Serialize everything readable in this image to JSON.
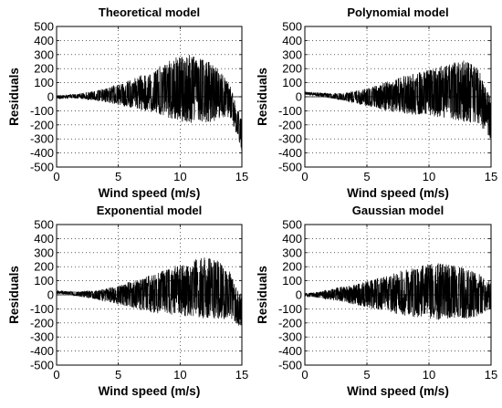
{
  "chart_data": [
    {
      "type": "area",
      "title": "Theoretical model",
      "xlabel": "Wind speed (m/s)",
      "ylabel": "Residuals",
      "xlim": [
        0,
        15
      ],
      "ylim": [
        -500,
        500
      ],
      "xticks": [
        "0",
        "5",
        "10",
        "15"
      ],
      "yticks": [
        "500",
        "400",
        "300",
        "200",
        "100",
        "0",
        "-100",
        "-200",
        "-300",
        "-400",
        "-500"
      ],
      "grid": true,
      "series": [
        {
          "x": [
            0,
            1,
            2,
            3,
            4,
            5,
            6,
            7,
            8,
            9,
            10,
            11,
            12,
            13,
            14,
            14.5,
            15
          ],
          "upper": [
            10,
            15,
            25,
            40,
            60,
            90,
            120,
            160,
            210,
            260,
            290,
            300,
            270,
            210,
            100,
            -50,
            -150
          ],
          "lower": [
            -15,
            -10,
            -15,
            -25,
            -40,
            -60,
            -80,
            -100,
            -120,
            -150,
            -175,
            -190,
            -190,
            -170,
            -150,
            -250,
            -390
          ]
        }
      ]
    },
    {
      "type": "area",
      "title": "Polynomial model",
      "xlabel": "Wind speed (m/s)",
      "ylabel": "Residuals",
      "xlim": [
        0,
        15
      ],
      "ylim": [
        -500,
        500
      ],
      "xticks": [
        "0",
        "5",
        "10",
        "15"
      ],
      "yticks": [
        "500",
        "400",
        "300",
        "200",
        "100",
        "0",
        "-100",
        "-200",
        "-300",
        "-400",
        "-500"
      ],
      "grid": true,
      "series": [
        {
          "x": [
            0,
            1,
            2,
            3,
            4,
            5,
            6,
            7,
            8,
            9,
            10,
            11,
            12,
            13,
            14,
            14.5,
            15
          ],
          "upper": [
            35,
            30,
            25,
            25,
            40,
            60,
            90,
            120,
            150,
            170,
            190,
            220,
            250,
            260,
            200,
            80,
            0
          ],
          "lower": [
            15,
            5,
            -10,
            -25,
            -45,
            -65,
            -90,
            -110,
            -120,
            -130,
            -140,
            -150,
            -170,
            -180,
            -190,
            -250,
            -300
          ]
        }
      ]
    },
    {
      "type": "area",
      "title": "Exponential model",
      "xlabel": "Wind speed (m/s)",
      "ylabel": "Residuals",
      "xlim": [
        0,
        15
      ],
      "ylim": [
        -500,
        500
      ],
      "xticks": [
        "0",
        "5",
        "10",
        "15"
      ],
      "yticks": [
        "500",
        "400",
        "300",
        "200",
        "100",
        "0",
        "-100",
        "-200",
        "-300",
        "-400",
        "-500"
      ],
      "grid": true,
      "series": [
        {
          "x": [
            0,
            1,
            2,
            3,
            4,
            5,
            6,
            7,
            8,
            9,
            10,
            11,
            12,
            13,
            14,
            14.5,
            15
          ],
          "upper": [
            30,
            25,
            25,
            30,
            45,
            65,
            95,
            125,
            160,
            190,
            220,
            250,
            270,
            250,
            170,
            60,
            0
          ],
          "lower": [
            10,
            0,
            -15,
            -30,
            -50,
            -70,
            -95,
            -115,
            -130,
            -140,
            -150,
            -160,
            -170,
            -180,
            -160,
            -200,
            -240
          ]
        }
      ]
    },
    {
      "type": "area",
      "title": "Gaussian model",
      "xlabel": "Wind speed (m/s)",
      "ylabel": "Residuals",
      "xlim": [
        0,
        15
      ],
      "ylim": [
        -500,
        500
      ],
      "xticks": [
        "0",
        "5",
        "10",
        "15"
      ],
      "yticks": [
        "500",
        "400",
        "300",
        "200",
        "100",
        "0",
        "-100",
        "-200",
        "-300",
        "-400",
        "-500"
      ],
      "grid": true,
      "series": [
        {
          "x": [
            0,
            1,
            2,
            3,
            4,
            5,
            6,
            7,
            8,
            9,
            10,
            11,
            12,
            13,
            14,
            14.5,
            15
          ],
          "upper": [
            10,
            20,
            40,
            60,
            80,
            100,
            120,
            150,
            180,
            200,
            220,
            230,
            210,
            190,
            150,
            130,
            100
          ],
          "lower": [
            -10,
            -20,
            -35,
            -50,
            -70,
            -90,
            -110,
            -130,
            -150,
            -160,
            -170,
            -180,
            -170,
            -170,
            -150,
            -120,
            -100
          ]
        }
      ]
    }
  ]
}
